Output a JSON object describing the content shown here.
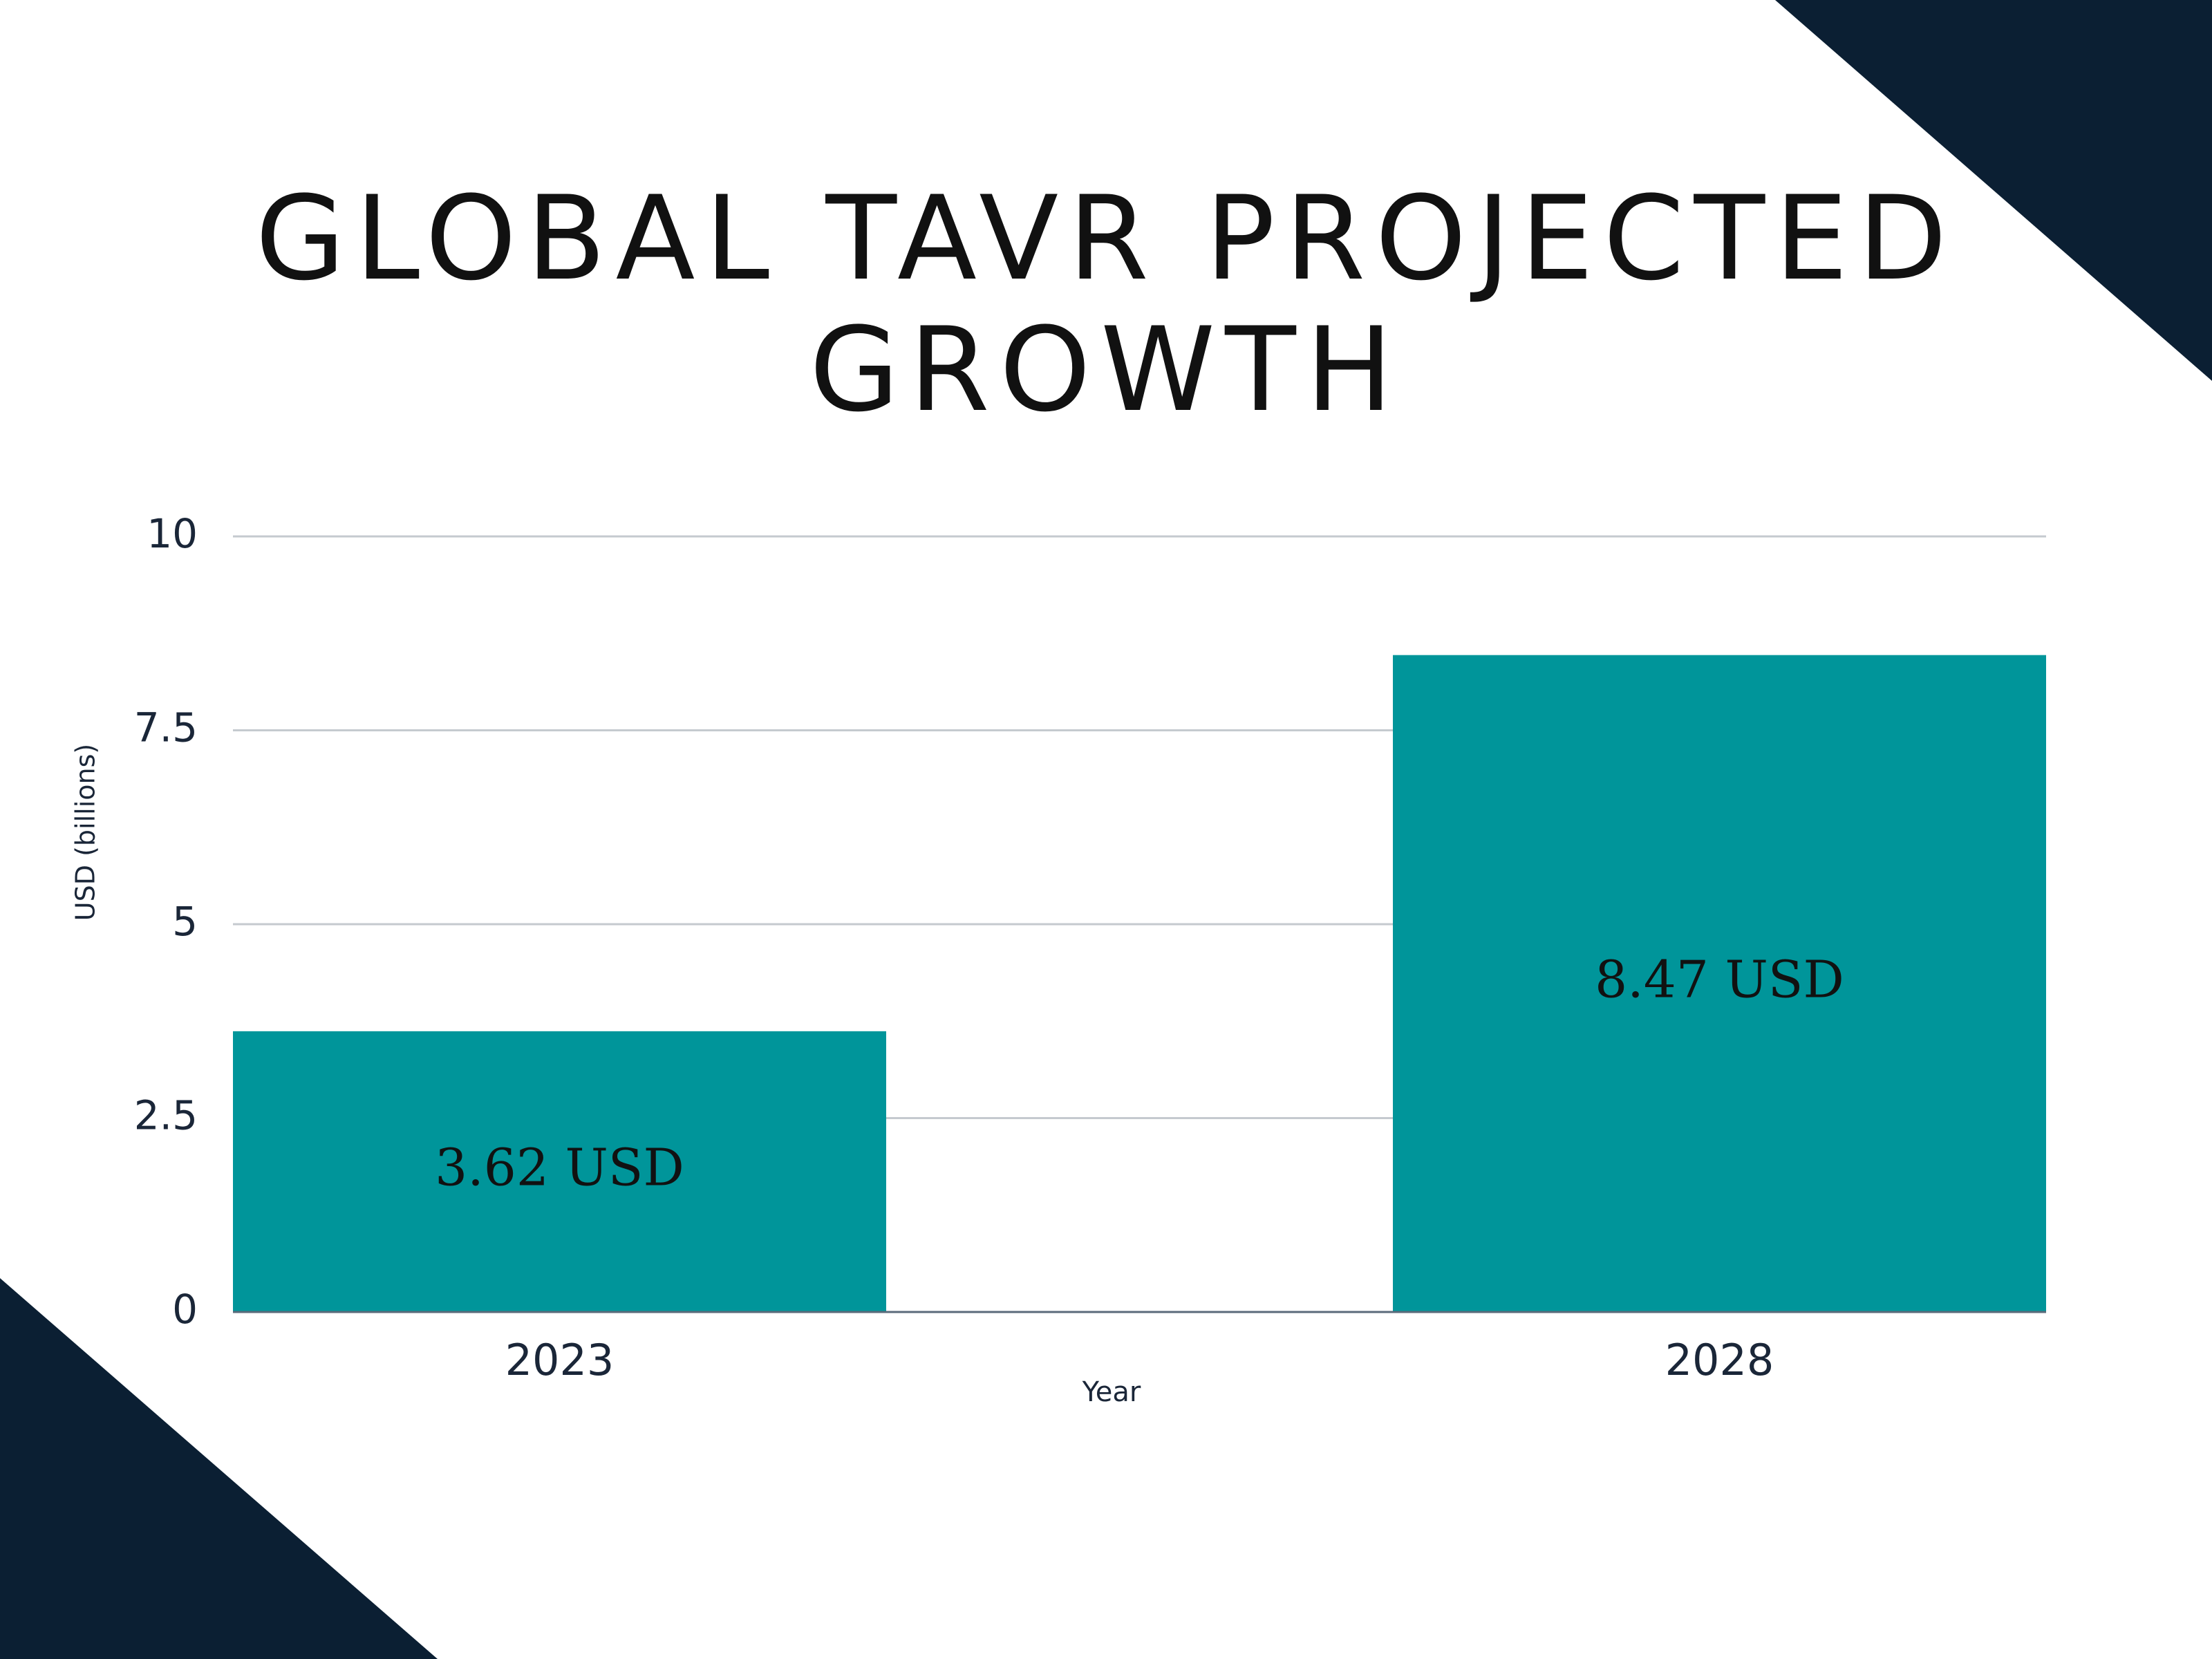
{
  "chart_data": {
    "type": "bar",
    "title": "GLOBAL TAVR PROJECTED GROWTH",
    "categories": [
      "2023",
      "2028"
    ],
    "values": [
      3.62,
      8.47
    ],
    "value_labels": [
      "3.62 USD",
      "8.47 USD"
    ],
    "color": "#00959a",
    "xlabel": "Year",
    "ylabel": "USD (billions)",
    "ylim": [
      0,
      10
    ],
    "yticks": [
      0,
      2.5,
      5,
      7.5,
      10
    ],
    "grid": true
  }
}
